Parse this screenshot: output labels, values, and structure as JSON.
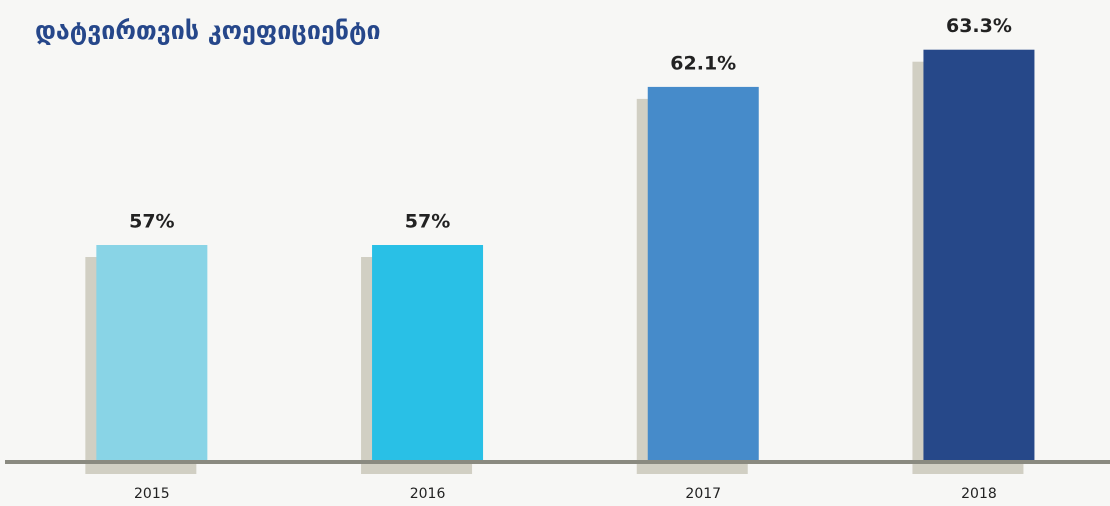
{
  "chart_data": {
    "type": "bar",
    "title": "დატვირთვის კოეფიციენტი",
    "categories": [
      "2015",
      "2016",
      "2017",
      "2018"
    ],
    "values": [
      57,
      57,
      62.1,
      63.3
    ],
    "value_labels": [
      "57%",
      "57%",
      "62.1%",
      "63.3%"
    ],
    "colors": [
      "#89d4e6",
      "#29c0e6",
      "#468bca",
      "#264889"
    ],
    "ylim": [
      50,
      64
    ]
  }
}
